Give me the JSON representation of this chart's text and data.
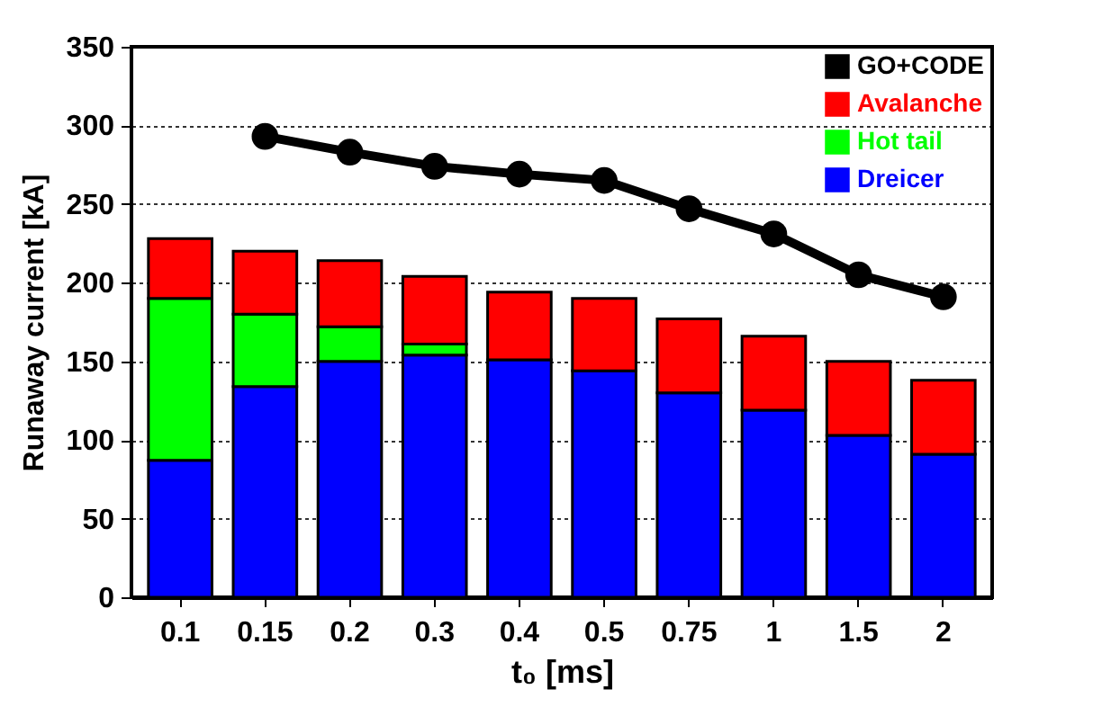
{
  "chart_data": {
    "type": "bar",
    "stacked": true,
    "xlabel": "t₀ [ms]",
    "ylabel": "Runaway current [kA]",
    "categories": [
      "0.1",
      "0.15",
      "0.2",
      "0.3",
      "0.4",
      "0.5",
      "0.75",
      "1",
      "1.5",
      "2"
    ],
    "series": [
      {
        "name": "Dreicer",
        "color": "#0000ff",
        "values": [
          87,
          134,
          150,
          154,
          151,
          144,
          130,
          119,
          103,
          91
        ]
      },
      {
        "name": "Hot tail",
        "color": "#00ff00",
        "values": [
          103,
          46,
          22,
          7,
          null,
          0,
          0,
          0,
          0,
          0
        ]
      },
      {
        "name": "Avalanche",
        "color": "#ff0000",
        "values": [
          38,
          40,
          42,
          43,
          43,
          46,
          47,
          47,
          47,
          47
        ]
      },
      {
        "name": "GO+CODE",
        "type": "line",
        "color": "#000000",
        "marker": "circle",
        "line_style": "solid",
        "values": [
          null,
          293,
          283,
          274,
          269,
          265,
          247,
          231,
          205,
          191
        ]
      }
    ],
    "ylim": [
      0,
      350
    ],
    "yticks": [
      0,
      50,
      100,
      150,
      200,
      250,
      300,
      350
    ],
    "grid": "y",
    "legend": "top right"
  }
}
